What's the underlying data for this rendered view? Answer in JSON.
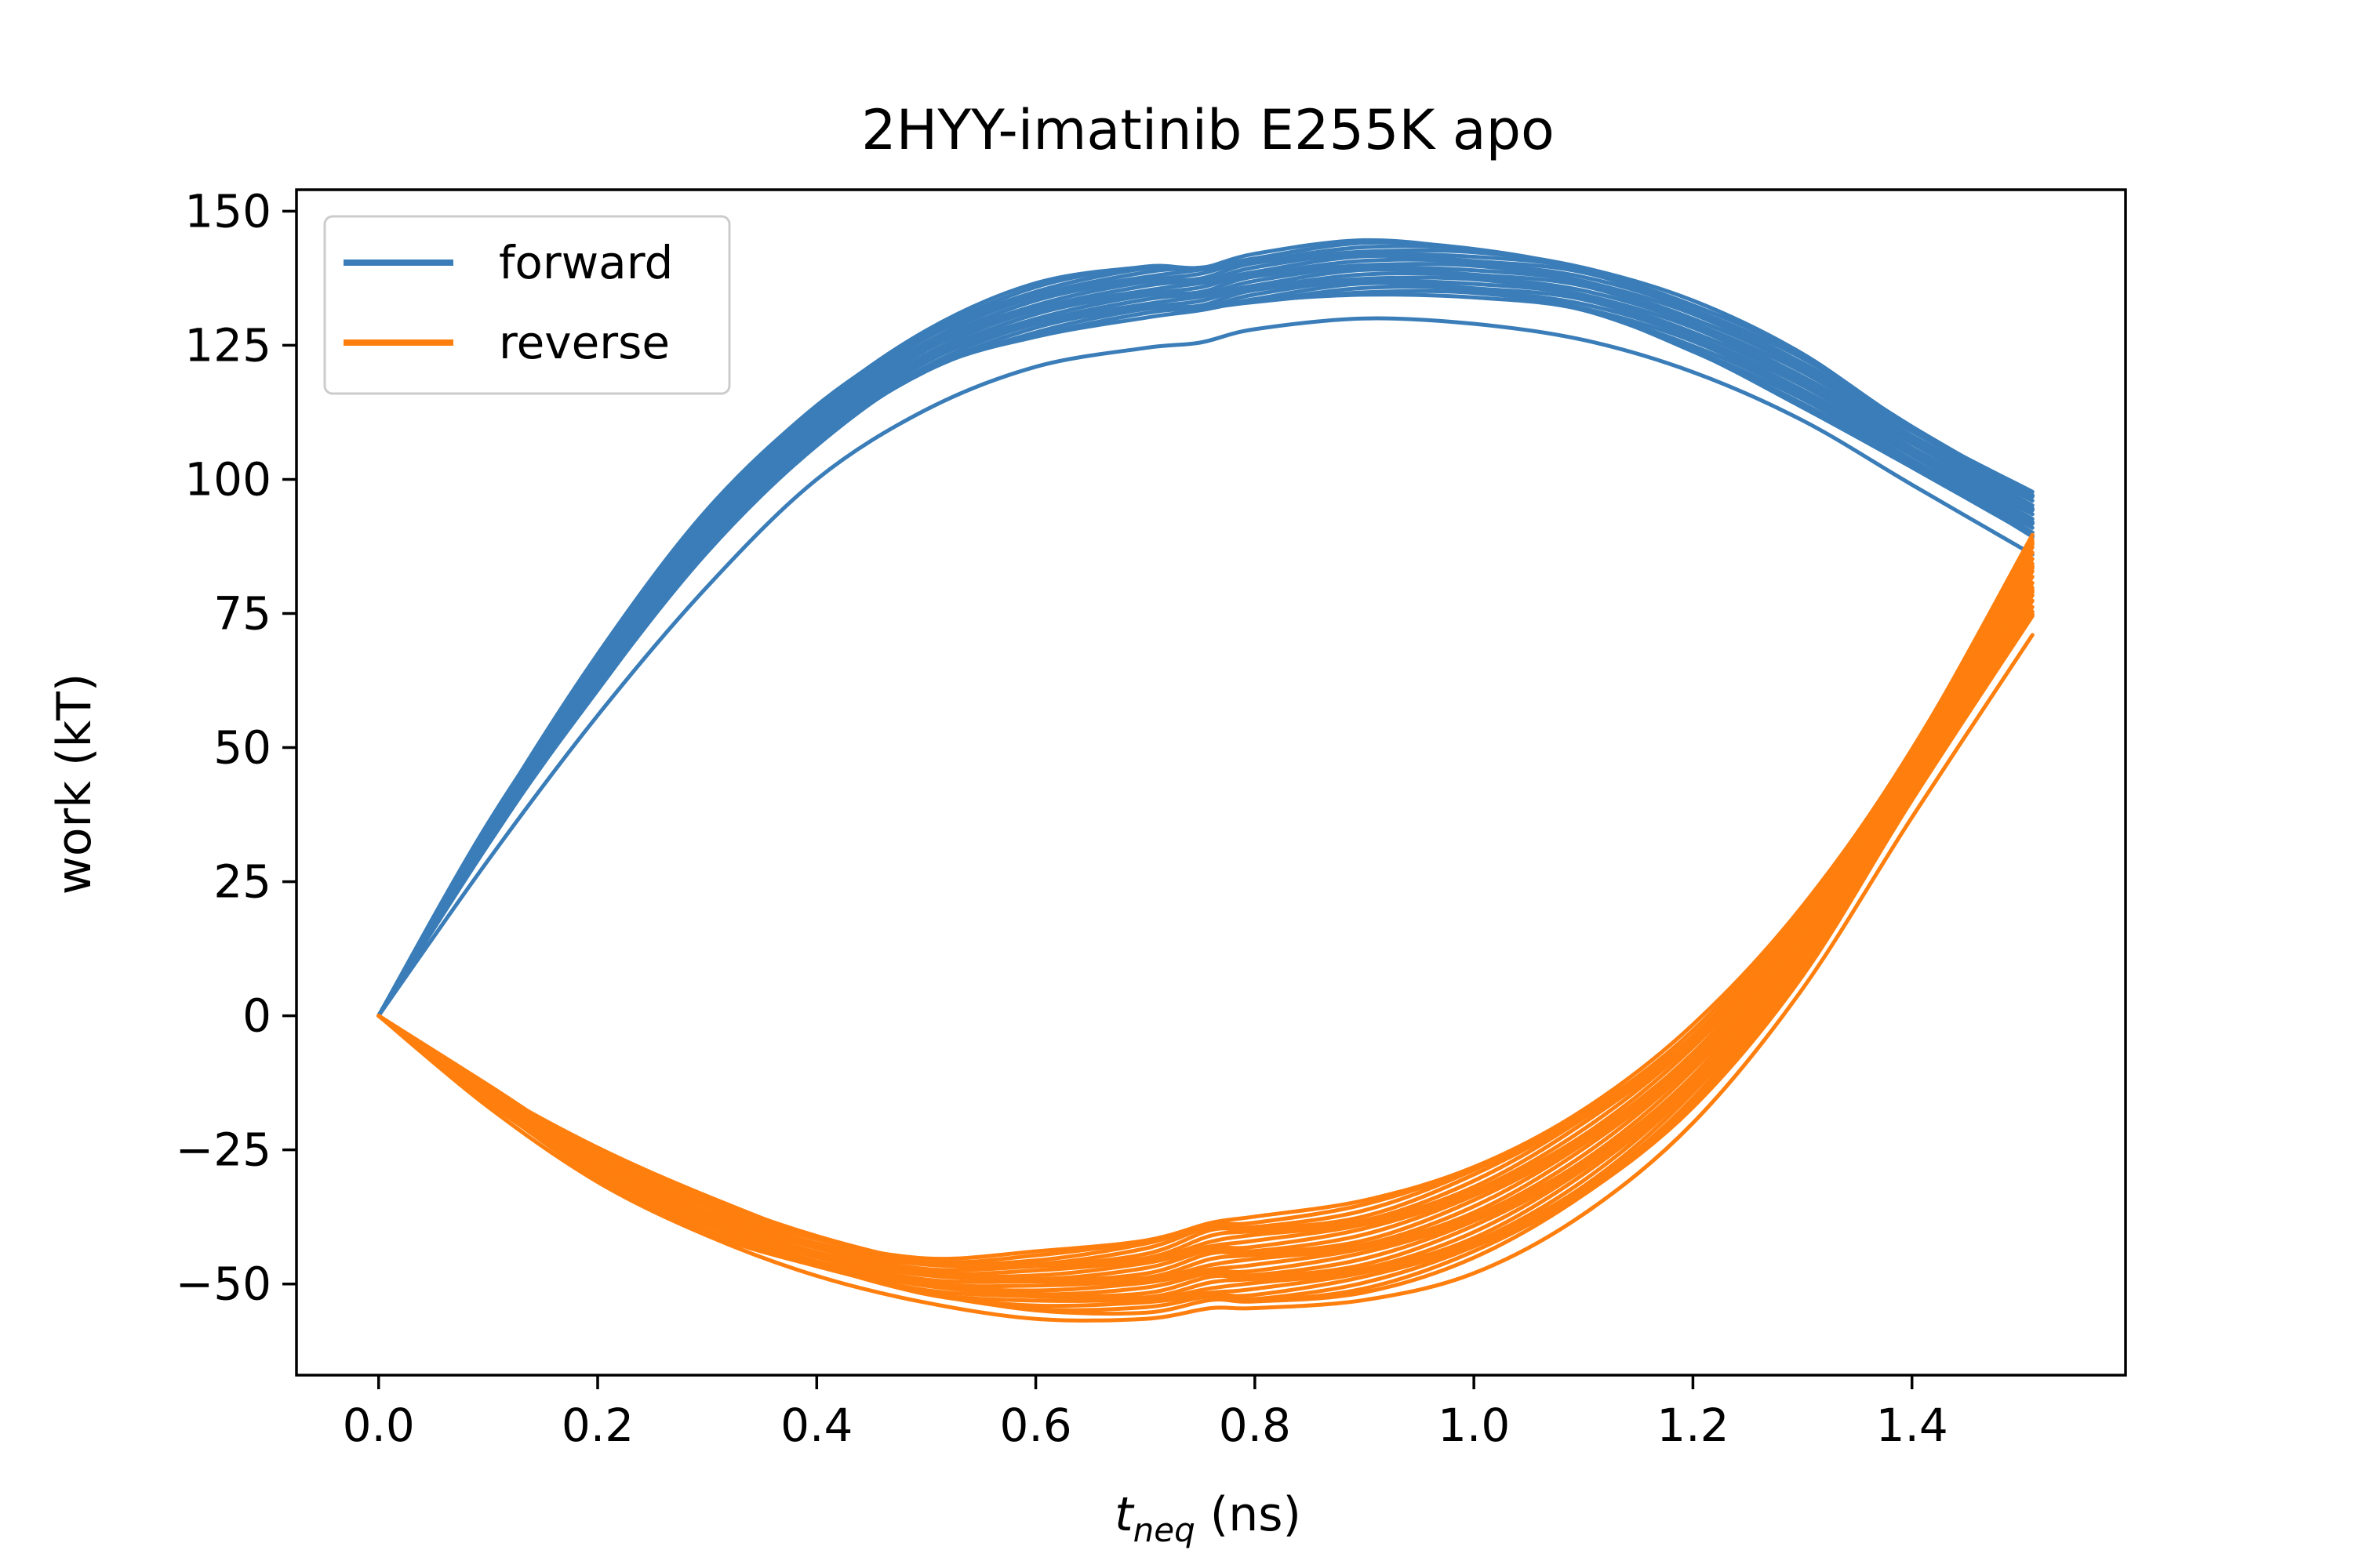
{
  "chart_data": {
    "type": "line",
    "title": "2HYY-imatinib E255K apo",
    "xlabel_var": "t",
    "xlabel_sub": "neq",
    "xlabel_unit": " (ns)",
    "ylabel": "work (kT)",
    "xlim": [
      -0.075,
      1.595
    ],
    "ylim": [
      -67,
      154
    ],
    "xticks": [
      0.0,
      0.2,
      0.4,
      0.6,
      0.8,
      1.0,
      1.2,
      1.4
    ],
    "xtick_labels": [
      "0.0",
      "0.2",
      "0.4",
      "0.6",
      "0.8",
      "1.0",
      "1.2",
      "1.4"
    ],
    "yticks": [
      -50,
      -25,
      0,
      25,
      50,
      75,
      100,
      125,
      150
    ],
    "ytick_labels": [
      "−50",
      "−25",
      "0",
      "25",
      "50",
      "75",
      "100",
      "125",
      "150"
    ],
    "grid": false,
    "legend_placement": "upper left",
    "series": [
      {
        "name": "forward",
        "color": "#3a7db8",
        "band": true,
        "x": [
          0.0,
          0.1,
          0.2,
          0.3,
          0.4,
          0.5,
          0.6,
          0.7,
          0.75,
          0.8,
          0.9,
          1.0,
          1.1,
          1.2,
          1.3,
          1.4,
          1.51
        ],
        "upper": [
          0,
          36,
          67,
          94,
          114,
          128,
          136,
          139.5,
          140,
          142,
          144,
          143,
          140,
          133,
          123,
          110,
          98
        ],
        "lower": [
          0,
          32,
          61,
          87,
          106,
          120,
          127,
          130.5,
          131,
          133,
          135,
          134,
          131,
          124,
          114,
          102,
          89
        ],
        "outlier": [
          0,
          29,
          56,
          80,
          100,
          113,
          121,
          124.5,
          125.5,
          128,
          130,
          129,
          126,
          120,
          111,
          99,
          86
        ]
      },
      {
        "name": "reverse",
        "color": "#ff7f0e",
        "band": true,
        "x": [
          0.0,
          0.1,
          0.2,
          0.3,
          0.4,
          0.5,
          0.6,
          0.7,
          0.76,
          0.8,
          0.9,
          1.0,
          1.1,
          1.2,
          1.3,
          1.4,
          1.51
        ],
        "upper": [
          0,
          -13,
          -25,
          -34,
          -41,
          -45,
          -44.5,
          -42,
          -38,
          -37.5,
          -35,
          -28,
          -17,
          -2,
          20,
          50,
          90
        ],
        "lower": [
          0,
          -16,
          -30,
          -40,
          -47,
          -52,
          -54.5,
          -55,
          -53.5,
          -53.5,
          -51,
          -45,
          -34,
          -17,
          8,
          40,
          74
        ],
        "outlier": [
          0,
          -17,
          -31,
          -41,
          -48.5,
          -53.5,
          -56.5,
          -56.5,
          -54.5,
          -54.5,
          -53,
          -48,
          -37,
          -20,
          5,
          37,
          71
        ]
      }
    ]
  }
}
